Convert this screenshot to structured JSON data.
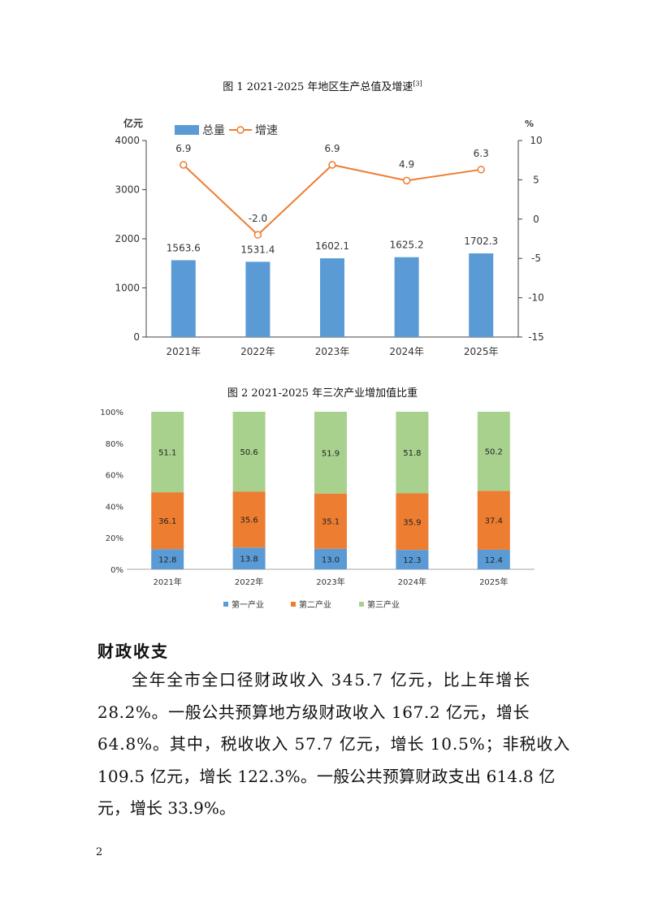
{
  "figure1": {
    "caption": "图 1 2021-2025 年地区生产总值及增速",
    "caption_ref": "[3]",
    "left_unit": "亿元",
    "right_unit": "%",
    "legend_total": "总量",
    "legend_speed": "增速",
    "colors": {
      "bar": "#5b9bd5",
      "line": "#ed7d31"
    }
  },
  "figure2": {
    "caption": "图 2 2021-2025 年三次产业增加值比重",
    "legend": [
      "第一产业",
      "第二产业",
      "第三产业"
    ],
    "colors": {
      "primary": "#5b9bd5",
      "secondary": "#ed7d31",
      "tertiary": "#a9d18e"
    }
  },
  "chart_data": [
    {
      "type": "bar",
      "categories": [
        "2021年",
        "2022年",
        "2023年",
        "2024年",
        "2025年"
      ],
      "series": [
        {
          "name": "总量",
          "type": "bar",
          "axis": "left",
          "values": [
            1563.6,
            1531.4,
            1602.1,
            1625.2,
            1702.3
          ]
        },
        {
          "name": "增速",
          "type": "line",
          "axis": "right",
          "values": [
            6.9,
            -2.0,
            6.9,
            4.9,
            6.3
          ]
        }
      ],
      "ylim": [
        0,
        4000
      ],
      "yticks": [
        "0",
        "1000",
        "2000",
        "3000",
        "4000"
      ],
      "y2lim": [
        -15,
        10
      ],
      "y2ticks": [
        "-15",
        "-10",
        "-5",
        "0",
        "5",
        "10"
      ],
      "ylabel": "亿元",
      "y2label": "%",
      "legend_position": "top-left"
    },
    {
      "type": "bar",
      "stacked": true,
      "categories": [
        "2021年",
        "2022年",
        "2023年",
        "2024年",
        "2025年"
      ],
      "series": [
        {
          "name": "第一产业",
          "values": [
            12.8,
            13.8,
            13.0,
            12.3,
            12.4
          ]
        },
        {
          "name": "第二产业",
          "values": [
            36.1,
            35.6,
            35.1,
            35.9,
            37.4
          ]
        },
        {
          "name": "第三产业",
          "values": [
            51.1,
            50.6,
            51.9,
            51.8,
            50.2
          ]
        }
      ],
      "ylim": [
        0,
        100
      ],
      "yticks": [
        "0%",
        "20%",
        "40%",
        "60%",
        "80%",
        "100%"
      ],
      "legend_position": "bottom"
    }
  ],
  "section": {
    "heading": "财政收支",
    "lines": [
      "全年全市全口径财政收入 345.7 亿元，比上年增长",
      "28.2%。一般公共预算地方级财政收入 167.2 亿元，增长",
      "64.8%。其中，税收收入 57.7 亿元，增长 10.5%；非税收入",
      "109.5 亿元，增长 122.3%。一般公共预算财政支出 614.8 亿",
      "元，增长 33.9%。"
    ]
  },
  "page_number": "2"
}
